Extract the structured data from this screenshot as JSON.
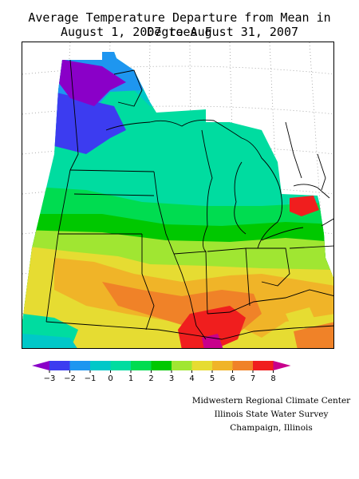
{
  "title": {
    "line1": "Average Temperature Departure from Mean in Degrees F",
    "line2": "August 1, 2007 to August 31, 2007"
  },
  "legend": {
    "ticks": [
      "−3",
      "−2",
      "−1",
      "0",
      "1",
      "2",
      "3",
      "4",
      "5",
      "6",
      "7",
      "8"
    ],
    "colors": [
      "#8a00c8",
      "#3c3cf0",
      "#1e96f0",
      "#00c8c8",
      "#00dca0",
      "#00dc50",
      "#00c800",
      "#a0e632",
      "#e6dc32",
      "#f0b428",
      "#f08228",
      "#f01e1e",
      "#c8008c"
    ]
  },
  "credits": {
    "line1": "Midwestern Regional Climate Center",
    "line2": "Illinois State Water Survey",
    "line3": "Champaign, Illinois"
  }
}
